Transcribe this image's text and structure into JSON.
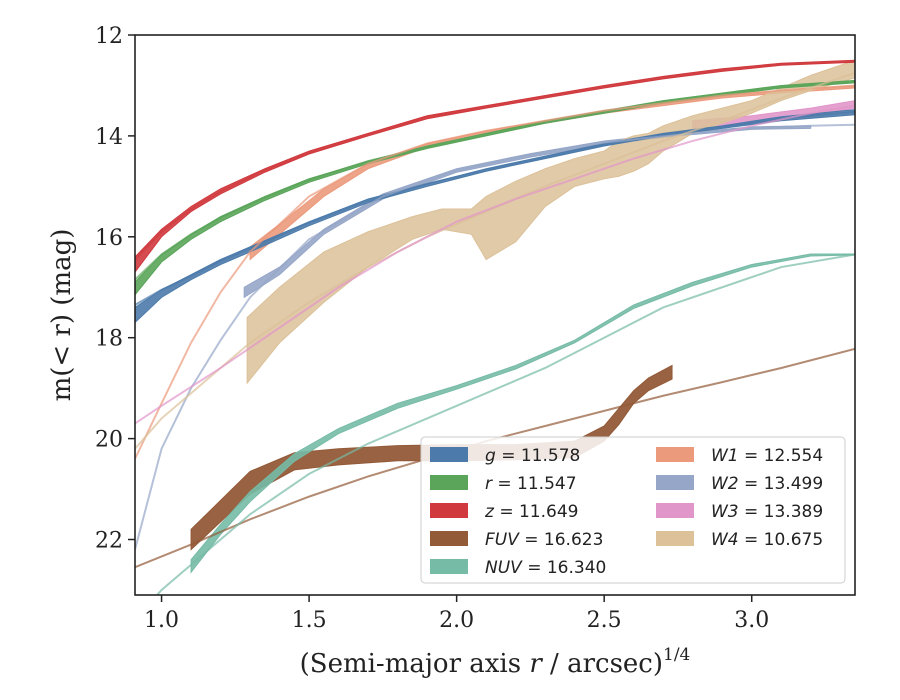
{
  "chart_data": {
    "type": "line",
    "xlabel": "(Semi-major axis r / arcsec)",
    "xlabel_italic": "r",
    "xlabel_exponent": "1/4",
    "ylabel": "m(< r) (mag)",
    "xlim": [
      0.91,
      3.35
    ],
    "ylim": [
      23.1,
      12.0
    ],
    "y_inverted": true,
    "xticks": [
      "1.0",
      "1.5",
      "2.0",
      "2.5",
      "3.0"
    ],
    "yticks": [
      "12",
      "14",
      "16",
      "18",
      "20",
      "22"
    ],
    "grid": false,
    "legend_position": "lower-right",
    "legend": [
      {
        "band": "g",
        "value": "11.578",
        "color": "#4c7bab"
      },
      {
        "band": "r",
        "value": "11.547",
        "color": "#5aa55a"
      },
      {
        "band": "z",
        "value": "11.649",
        "color": "#d03a3e"
      },
      {
        "band": "FUV",
        "value": "16.623",
        "color": "#935a38"
      },
      {
        "band": "NUV",
        "value": "16.340",
        "color": "#76bba6"
      },
      {
        "band": "W1",
        "value": "12.554",
        "color": "#eb9a7c"
      },
      {
        "band": "W2",
        "value": "13.499",
        "color": "#96a6c8"
      },
      {
        "band": "W3",
        "value": "13.389",
        "color": "#e196c9"
      },
      {
        "band": "W4",
        "value": "10.675",
        "color": "#dcc199"
      }
    ],
    "series": [
      {
        "name": "FUV",
        "color": "#935a38",
        "kind": "band",
        "x": [
          1.1,
          1.3,
          1.45,
          1.6,
          1.8,
          2.0,
          2.2,
          2.4,
          2.5,
          2.55,
          2.6,
          2.65,
          2.73
        ],
        "y_low": [
          21.8,
          20.65,
          20.28,
          20.2,
          20.14,
          20.12,
          20.12,
          20.05,
          19.75,
          19.4,
          19.05,
          18.8,
          18.55
        ],
        "y_high": [
          22.2,
          21.1,
          20.62,
          20.52,
          20.44,
          20.44,
          20.42,
          20.38,
          20.05,
          19.72,
          19.3,
          19.05,
          18.82
        ]
      },
      {
        "name": "NUV",
        "color": "#76bba6",
        "kind": "band",
        "x": [
          1.1,
          1.2,
          1.3,
          1.45,
          1.6,
          1.8,
          2.0,
          2.2,
          2.4,
          2.6,
          2.8,
          3.0,
          3.2,
          3.35
        ],
        "y_low": [
          22.4,
          21.7,
          21.05,
          20.3,
          19.8,
          19.3,
          18.95,
          18.55,
          18.05,
          17.35,
          16.9,
          16.55,
          16.34,
          16.34
        ],
        "y_high": [
          22.65,
          21.9,
          21.25,
          20.45,
          19.9,
          19.4,
          19.02,
          18.62,
          18.1,
          17.42,
          16.97,
          16.6,
          16.38,
          16.36
        ]
      },
      {
        "name": "W1",
        "color": "#eb9a7c",
        "kind": "band",
        "x": [
          1.3,
          1.4,
          1.55,
          1.7,
          1.9,
          2.1,
          2.3,
          2.5,
          2.7,
          2.9,
          3.1,
          3.35
        ],
        "y_low": [
          16.2,
          15.75,
          15.05,
          14.55,
          14.15,
          13.9,
          13.7,
          13.5,
          13.35,
          13.2,
          13.1,
          13.0
        ],
        "y_high": [
          16.45,
          15.95,
          15.2,
          14.65,
          14.22,
          13.95,
          13.75,
          13.55,
          13.4,
          13.25,
          13.15,
          13.05
        ]
      },
      {
        "name": "W2",
        "color": "#96a6c8",
        "kind": "band",
        "x": [
          1.28,
          1.4,
          1.55,
          1.75,
          2.0,
          2.25,
          2.5,
          2.75,
          3.0,
          3.2
        ],
        "y_low": [
          17.0,
          16.6,
          15.85,
          15.15,
          14.65,
          14.35,
          14.1,
          13.95,
          13.82,
          13.8
        ],
        "y_high": [
          17.2,
          16.75,
          15.95,
          15.25,
          14.72,
          14.42,
          14.17,
          14.0,
          13.87,
          13.85
        ]
      },
      {
        "name": "W3",
        "color": "#e196c9",
        "kind": "band",
        "x": [
          2.8,
          3.0,
          3.2,
          3.35
        ],
        "y_low": [
          13.7,
          13.6,
          13.45,
          13.3
        ],
        "y_high": [
          13.9,
          13.75,
          13.6,
          13.45
        ]
      },
      {
        "name": "W4",
        "color": "#dcc199",
        "kind": "band",
        "x": [
          1.29,
          1.4,
          1.55,
          1.7,
          1.85,
          1.95,
          2.05,
          2.1,
          2.2,
          2.3,
          2.4,
          2.5,
          2.55,
          2.6,
          2.65,
          2.7,
          2.8,
          2.9,
          3.0,
          3.1,
          3.2,
          3.35
        ],
        "y_low": [
          17.6,
          17.0,
          16.3,
          15.9,
          15.6,
          15.45,
          15.45,
          15.2,
          14.9,
          14.65,
          14.45,
          14.3,
          14.1,
          14.0,
          13.95,
          13.8,
          13.6,
          13.45,
          13.3,
          13.05,
          12.8,
          12.5
        ],
        "y_high": [
          18.9,
          18.1,
          17.3,
          16.6,
          16.05,
          15.85,
          15.95,
          16.45,
          16.1,
          15.4,
          15.0,
          14.85,
          14.8,
          14.7,
          14.55,
          14.3,
          13.95,
          13.75,
          13.55,
          13.3,
          13.1,
          12.85
        ]
      },
      {
        "name": "g",
        "color": "#4c7bab",
        "kind": "band",
        "x": [
          0.91,
          1.0,
          1.1,
          1.2,
          1.3,
          1.5,
          1.7,
          1.9,
          2.1,
          2.3,
          2.5,
          2.7,
          2.9,
          3.1,
          3.35
        ],
        "y_low": [
          17.4,
          17.05,
          16.75,
          16.45,
          16.2,
          15.7,
          15.25,
          14.95,
          14.65,
          14.4,
          14.15,
          13.95,
          13.8,
          13.62,
          13.48
        ],
        "y_high": [
          17.7,
          17.2,
          16.85,
          16.55,
          16.3,
          15.78,
          15.32,
          15.0,
          14.7,
          14.45,
          14.2,
          14.0,
          13.85,
          13.7,
          13.58
        ]
      },
      {
        "name": "r",
        "color": "#5aa55a",
        "kind": "band",
        "x": [
          0.91,
          1.0,
          1.1,
          1.2,
          1.35,
          1.5,
          1.7,
          1.9,
          2.1,
          2.3,
          2.5,
          2.7,
          2.9,
          3.1,
          3.35
        ],
        "y_low": [
          16.9,
          16.35,
          15.95,
          15.6,
          15.2,
          14.85,
          14.5,
          14.2,
          13.95,
          13.7,
          13.5,
          13.3,
          13.15,
          13.0,
          12.9
        ],
        "y_high": [
          17.15,
          16.5,
          16.05,
          15.7,
          15.28,
          14.92,
          14.55,
          14.25,
          14.0,
          13.75,
          13.55,
          13.35,
          13.2,
          13.05,
          12.95
        ]
      },
      {
        "name": "z",
        "color": "#d03a3e",
        "kind": "band",
        "x": [
          0.91,
          1.0,
          1.1,
          1.2,
          1.35,
          1.5,
          1.7,
          1.9,
          2.1,
          2.3,
          2.5,
          2.7,
          2.9,
          3.1,
          3.35
        ],
        "y_low": [
          16.4,
          15.85,
          15.4,
          15.05,
          14.65,
          14.3,
          13.95,
          13.6,
          13.4,
          13.2,
          13.0,
          12.82,
          12.67,
          12.56,
          12.5
        ],
        "y_high": [
          16.7,
          16.0,
          15.5,
          15.15,
          14.72,
          14.36,
          14.0,
          13.66,
          13.45,
          13.25,
          13.05,
          12.87,
          12.72,
          12.6,
          12.54
        ]
      },
      {
        "name": "z-model",
        "color": "#d03a3e",
        "kind": "line",
        "x": [
          0.91,
          1.0,
          1.1,
          1.2,
          1.35,
          1.5,
          1.7,
          1.9,
          2.1,
          2.3,
          2.5,
          2.7,
          2.9,
          3.1,
          3.35
        ],
        "y": [
          16.45,
          15.9,
          15.45,
          15.1,
          14.68,
          14.33,
          13.97,
          13.63,
          13.42,
          13.22,
          13.02,
          12.84,
          12.69,
          12.58,
          12.52
        ]
      },
      {
        "name": "r-model",
        "color": "#5aa55a",
        "kind": "line",
        "x": [
          0.91,
          1.0,
          1.1,
          1.2,
          1.35,
          1.5,
          1.7,
          1.9,
          2.1,
          2.3,
          2.5,
          2.7,
          2.9,
          3.1,
          3.35
        ],
        "y": [
          16.85,
          16.35,
          15.95,
          15.62,
          15.22,
          14.87,
          14.5,
          14.22,
          13.97,
          13.72,
          13.52,
          13.32,
          13.17,
          13.02,
          12.92
        ]
      },
      {
        "name": "g-model",
        "color": "#4c7bab",
        "kind": "line",
        "x": [
          0.91,
          1.0,
          1.1,
          1.2,
          1.3,
          1.5,
          1.7,
          1.9,
          2.1,
          2.3,
          2.5,
          2.7,
          2.9,
          3.1,
          3.35
        ],
        "y": [
          17.35,
          17.05,
          16.78,
          16.48,
          16.23,
          15.72,
          15.27,
          14.95,
          14.67,
          14.42,
          14.17,
          13.97,
          13.82,
          13.66,
          13.52
        ]
      },
      {
        "name": "W1-model",
        "color": "#eb9a7c",
        "kind": "line",
        "x": [
          0.91,
          1.0,
          1.1,
          1.2,
          1.3,
          1.5,
          1.7,
          1.9,
          2.1,
          2.3,
          2.5,
          2.7,
          2.9,
          3.1,
          3.35
        ],
        "y": [
          20.4,
          19.3,
          18.1,
          17.1,
          16.3,
          15.2,
          14.55,
          14.15,
          13.9,
          13.7,
          13.5,
          13.35,
          13.2,
          13.1,
          13.0
        ]
      },
      {
        "name": "W2-model",
        "color": "#96a6c8",
        "kind": "line",
        "x": [
          0.91,
          1.0,
          1.1,
          1.2,
          1.3,
          1.5,
          1.75,
          2.0,
          2.25,
          2.5,
          2.75,
          3.0,
          3.2,
          3.35
        ],
        "y": [
          22.2,
          20.2,
          19.0,
          18.05,
          17.2,
          16.05,
          15.2,
          14.68,
          14.38,
          14.13,
          13.98,
          13.85,
          13.8,
          13.78
        ]
      },
      {
        "name": "W4-model",
        "color": "#dcc199",
        "kind": "line",
        "x": [
          0.91,
          1.0,
          1.1,
          1.2,
          1.3,
          1.5,
          1.7,
          1.9,
          2.1,
          2.3,
          2.5,
          2.7,
          2.9,
          3.1,
          3.35
        ],
        "y": [
          20.2,
          19.6,
          19.1,
          18.6,
          18.1,
          17.3,
          16.6,
          16.0,
          15.5,
          15.0,
          14.55,
          14.1,
          13.7,
          13.25,
          12.75
        ]
      },
      {
        "name": "W3-model",
        "color": "#e196c9",
        "kind": "line",
        "x": [
          0.91,
          1.0,
          1.2,
          1.4,
          1.6,
          1.8,
          2.0,
          2.2,
          2.4,
          2.6,
          2.8,
          3.0,
          3.2,
          3.35
        ],
        "y": [
          19.7,
          19.35,
          18.6,
          17.8,
          17.0,
          16.3,
          15.7,
          15.25,
          14.85,
          14.45,
          14.1,
          13.8,
          13.55,
          13.4
        ]
      },
      {
        "name": "FUV-model",
        "color": "#935a38",
        "kind": "line",
        "x": [
          0.91,
          1.1,
          1.3,
          1.5,
          1.7,
          1.9,
          2.1,
          2.3,
          2.5,
          2.7,
          2.9,
          3.1,
          3.35
        ],
        "y": [
          22.55,
          22.1,
          21.6,
          21.15,
          20.75,
          20.4,
          20.05,
          19.75,
          19.45,
          19.15,
          18.88,
          18.6,
          18.22
        ]
      },
      {
        "name": "NUV-model",
        "color": "#76bba6",
        "kind": "line",
        "x": [
          0.91,
          1.0,
          1.1,
          1.2,
          1.3,
          1.5,
          1.7,
          1.9,
          2.1,
          2.3,
          2.5,
          2.7,
          2.9,
          3.1,
          3.35
        ],
        "y": [
          23.6,
          23.0,
          22.5,
          22.0,
          21.5,
          20.7,
          20.1,
          19.6,
          19.1,
          18.6,
          18.0,
          17.4,
          17.0,
          16.6,
          16.35
        ]
      }
    ]
  }
}
